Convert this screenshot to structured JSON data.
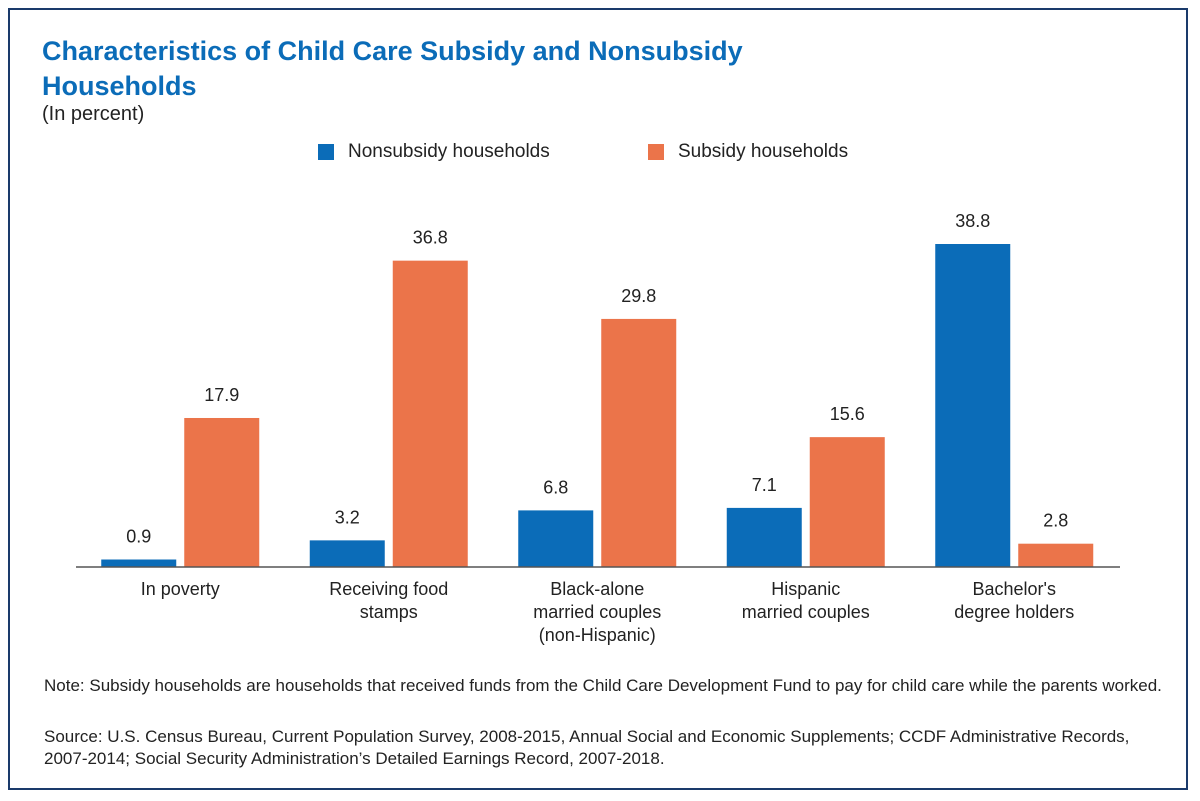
{
  "chart_data": {
    "type": "bar",
    "title": "Characteristics of Child Care Subsidy and Nonsubsidy Households",
    "subtitle": "(In percent)",
    "categories": [
      [
        "In poverty"
      ],
      [
        "Receiving food",
        "stamps"
      ],
      [
        "Black-alone",
        "married couples",
        "(non-Hispanic)"
      ],
      [
        "Hispanic",
        "married couples"
      ],
      [
        "Bachelor's",
        "degree holders"
      ]
    ],
    "series": [
      {
        "name": "Nonsubsidy households",
        "color": "#0b6cb8",
        "values": [
          0.9,
          3.2,
          6.8,
          7.1,
          38.8
        ]
      },
      {
        "name": "Subsidy households",
        "color": "#eb744a",
        "values": [
          17.9,
          36.8,
          29.8,
          15.6,
          2.8
        ]
      }
    ],
    "ylim": [
      0,
      38.8
    ],
    "value_labels": true,
    "legend_position": "top-center",
    "grid": false
  },
  "note": "Note: Subsidy households are households that received funds from the Child Care Development Fund to pay for child care while the parents worked.",
  "source": "Source: U.S. Census Bureau, Current Population Survey, 2008-2015, Annual Social and Economic Supplements; CCDF Administrative Records, 2007-2014; Social Security Administration’s Detailed Earnings Record, 2007-2018."
}
